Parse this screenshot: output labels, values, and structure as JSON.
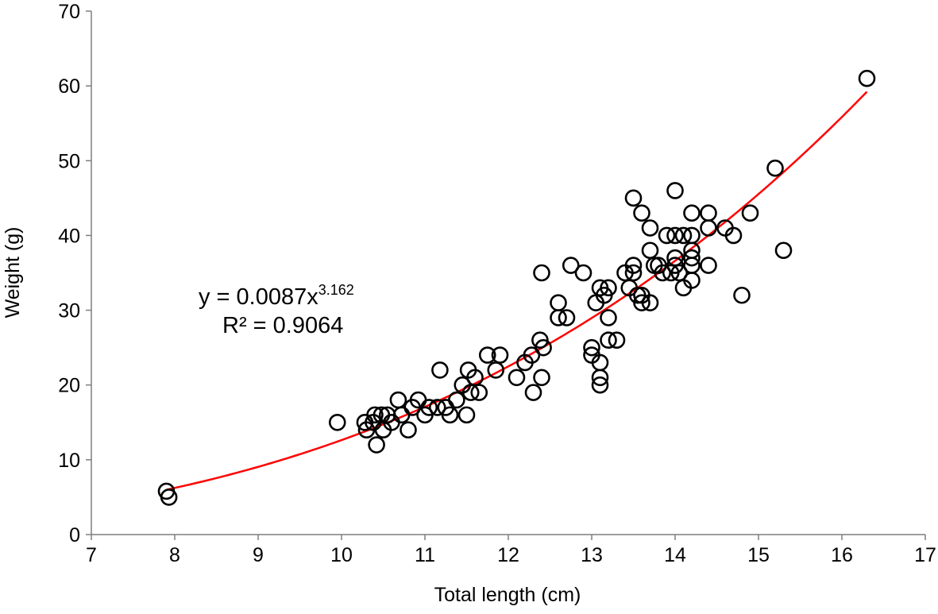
{
  "chart_data": {
    "type": "scatter",
    "title": "",
    "xlabel": "Total length (cm)",
    "ylabel": "Weight (g)",
    "xlim": [
      7,
      17
    ],
    "ylim": [
      0,
      70
    ],
    "x_ticks": [
      "7",
      "8",
      "9",
      "10",
      "11",
      "12",
      "13",
      "14",
      "15",
      "16",
      "17"
    ],
    "y_ticks": [
      "0",
      "10",
      "20",
      "30",
      "40",
      "50",
      "60",
      "70"
    ],
    "grid": false,
    "legend": "none",
    "marker": "open-circle",
    "marker_color": "#000000",
    "points": [
      [
        7.9,
        5.8
      ],
      [
        7.93,
        5.0
      ],
      [
        9.95,
        15.0
      ],
      [
        10.28,
        15.0
      ],
      [
        10.3,
        14.0
      ],
      [
        10.38,
        15.0
      ],
      [
        10.4,
        16.0
      ],
      [
        10.42,
        12.0
      ],
      [
        10.48,
        16.0
      ],
      [
        10.5,
        14.0
      ],
      [
        10.55,
        16.0
      ],
      [
        10.6,
        15.0
      ],
      [
        10.68,
        18.0
      ],
      [
        10.72,
        16.0
      ],
      [
        10.8,
        14.0
      ],
      [
        10.85,
        17.0
      ],
      [
        10.92,
        18.0
      ],
      [
        11.0,
        16.0
      ],
      [
        11.05,
        17.0
      ],
      [
        11.15,
        17.0
      ],
      [
        11.18,
        22.0
      ],
      [
        11.25,
        17.0
      ],
      [
        11.3,
        16.0
      ],
      [
        11.38,
        18.0
      ],
      [
        11.45,
        20.0
      ],
      [
        11.5,
        16.0
      ],
      [
        11.52,
        22.0
      ],
      [
        11.55,
        19.0
      ],
      [
        11.6,
        21.0
      ],
      [
        11.65,
        19.0
      ],
      [
        11.75,
        24.0
      ],
      [
        11.85,
        22.0
      ],
      [
        11.9,
        24.0
      ],
      [
        12.1,
        21.0
      ],
      [
        12.2,
        23.0
      ],
      [
        12.28,
        24.0
      ],
      [
        12.3,
        19.0
      ],
      [
        12.38,
        26.0
      ],
      [
        12.4,
        21.0
      ],
      [
        12.4,
        35.0
      ],
      [
        12.42,
        25.0
      ],
      [
        12.6,
        31.0
      ],
      [
        12.6,
        29.0
      ],
      [
        12.7,
        29.0
      ],
      [
        12.75,
        36.0
      ],
      [
        12.9,
        35.0
      ],
      [
        13.0,
        25.0
      ],
      [
        13.0,
        24.0
      ],
      [
        13.05,
        31.0
      ],
      [
        13.1,
        33.0
      ],
      [
        13.1,
        23.0
      ],
      [
        13.1,
        21.0
      ],
      [
        13.1,
        20.0
      ],
      [
        13.15,
        32.0
      ],
      [
        13.2,
        33.0
      ],
      [
        13.2,
        29.0
      ],
      [
        13.2,
        26.0
      ],
      [
        13.3,
        26.0
      ],
      [
        13.4,
        35.0
      ],
      [
        13.45,
        33.0
      ],
      [
        13.5,
        36.0
      ],
      [
        13.5,
        35.0
      ],
      [
        13.5,
        45.0
      ],
      [
        13.55,
        32.0
      ],
      [
        13.6,
        43.0
      ],
      [
        13.6,
        32.0
      ],
      [
        13.6,
        31.0
      ],
      [
        13.7,
        38.0
      ],
      [
        13.7,
        41.0
      ],
      [
        13.7,
        31.0
      ],
      [
        13.75,
        36.0
      ],
      [
        13.8,
        36.0
      ],
      [
        13.85,
        35.0
      ],
      [
        13.9,
        40.0
      ],
      [
        13.95,
        35.0
      ],
      [
        14.0,
        46.0
      ],
      [
        14.0,
        40.0
      ],
      [
        14.0,
        37.0
      ],
      [
        14.0,
        36.0
      ],
      [
        14.05,
        35.0
      ],
      [
        14.1,
        40.0
      ],
      [
        14.1,
        33.0
      ],
      [
        14.2,
        43.0
      ],
      [
        14.2,
        40.0
      ],
      [
        14.2,
        38.0
      ],
      [
        14.2,
        37.0
      ],
      [
        14.2,
        36.0
      ],
      [
        14.2,
        34.0
      ],
      [
        14.4,
        43.0
      ],
      [
        14.4,
        41.0
      ],
      [
        14.4,
        36.0
      ],
      [
        14.6,
        41.0
      ],
      [
        14.7,
        40.0
      ],
      [
        14.8,
        32.0
      ],
      [
        14.9,
        43.0
      ],
      [
        15.2,
        49.0
      ],
      [
        15.3,
        38.0
      ],
      [
        16.3,
        61.0
      ]
    ],
    "trendline": {
      "type": "power",
      "coefficient": 0.0087,
      "exponent": 3.162,
      "x_range": [
        7.9,
        16.3
      ],
      "color": "#ff0000"
    },
    "equation": {
      "prefix": "y = 0.0087x",
      "superscript": "3.162",
      "r_squared": "R² = 0.9064"
    }
  }
}
